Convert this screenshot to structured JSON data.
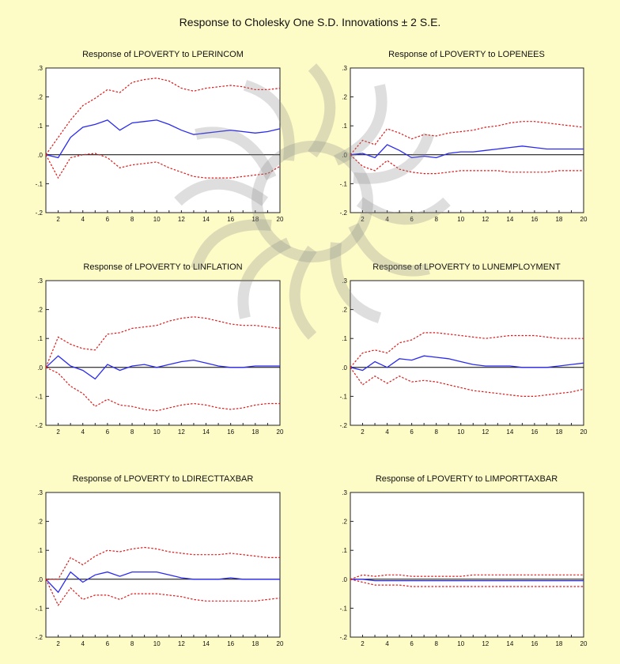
{
  "figure": {
    "title": "Response to Cholesky One S.D. Innovations ± 2 S.E.",
    "colors": {
      "background": "#fdfbc6",
      "response_line": "#2a2af0",
      "band_line": "#e01818",
      "zero_line": "#000000",
      "watermark": "#8a8a8a"
    }
  },
  "chart_data": [
    {
      "type": "line",
      "title": "Response of LPOVERTY to LPERINCOM",
      "x": [
        1,
        2,
        3,
        4,
        5,
        6,
        7,
        8,
        9,
        10,
        11,
        12,
        13,
        14,
        15,
        16,
        17,
        18,
        19,
        20
      ],
      "xticks": [
        2,
        4,
        6,
        8,
        10,
        12,
        14,
        16,
        18,
        20
      ],
      "ylim": [
        -0.2,
        0.3
      ],
      "yticks": [
        -0.2,
        -0.1,
        0.0,
        0.1,
        0.2,
        0.3
      ],
      "ytick_labels": [
        "-.2",
        "-.1",
        ".0",
        ".1",
        ".2",
        ".3"
      ],
      "series": [
        {
          "role": "response",
          "values": [
            0.0,
            -0.01,
            0.06,
            0.095,
            0.105,
            0.12,
            0.085,
            0.11,
            0.115,
            0.12,
            0.105,
            0.085,
            0.07,
            0.075,
            0.08,
            0.085,
            0.08,
            0.075,
            0.08,
            0.09
          ]
        },
        {
          "role": "upper",
          "values": [
            0.0,
            0.06,
            0.12,
            0.17,
            0.195,
            0.225,
            0.215,
            0.25,
            0.26,
            0.265,
            0.255,
            0.23,
            0.22,
            0.23,
            0.235,
            0.24,
            0.235,
            0.225,
            0.225,
            0.23
          ]
        },
        {
          "role": "lower",
          "values": [
            0.0,
            -0.08,
            -0.01,
            0.0,
            0.005,
            -0.01,
            -0.045,
            -0.035,
            -0.03,
            -0.025,
            -0.045,
            -0.06,
            -0.075,
            -0.08,
            -0.08,
            -0.08,
            -0.075,
            -0.07,
            -0.065,
            -0.04
          ]
        }
      ]
    },
    {
      "type": "line",
      "title": "Response of LPOVERTY to LOPENEES",
      "x": [
        1,
        2,
        3,
        4,
        5,
        6,
        7,
        8,
        9,
        10,
        11,
        12,
        13,
        14,
        15,
        16,
        17,
        18,
        19,
        20
      ],
      "xticks": [
        2,
        4,
        6,
        8,
        10,
        12,
        14,
        16,
        18,
        20
      ],
      "ylim": [
        -0.2,
        0.3
      ],
      "yticks": [
        -0.2,
        -0.1,
        0.0,
        0.1,
        0.2,
        0.3
      ],
      "ytick_labels": [
        "-.2",
        "-.1",
        ".0",
        ".1",
        ".2",
        ".3"
      ],
      "series": [
        {
          "role": "response",
          "values": [
            0.0,
            0.005,
            -0.01,
            0.035,
            0.015,
            -0.01,
            -0.005,
            -0.01,
            0.005,
            0.01,
            0.01,
            0.015,
            0.02,
            0.025,
            0.03,
            0.025,
            0.02,
            0.02,
            0.02,
            0.02
          ]
        },
        {
          "role": "upper",
          "values": [
            0.0,
            0.05,
            0.035,
            0.09,
            0.075,
            0.055,
            0.07,
            0.065,
            0.075,
            0.08,
            0.085,
            0.095,
            0.1,
            0.11,
            0.115,
            0.115,
            0.11,
            0.105,
            0.1,
            0.095
          ]
        },
        {
          "role": "lower",
          "values": [
            0.0,
            -0.04,
            -0.055,
            -0.02,
            -0.05,
            -0.06,
            -0.065,
            -0.065,
            -0.06,
            -0.055,
            -0.055,
            -0.055,
            -0.055,
            -0.06,
            -0.06,
            -0.06,
            -0.06,
            -0.055,
            -0.055,
            -0.055
          ]
        }
      ]
    },
    {
      "type": "line",
      "title": "Response of LPOVERTY to LINFLATION",
      "x": [
        1,
        2,
        3,
        4,
        5,
        6,
        7,
        8,
        9,
        10,
        11,
        12,
        13,
        14,
        15,
        16,
        17,
        18,
        19,
        20
      ],
      "xticks": [
        2,
        4,
        6,
        8,
        10,
        12,
        14,
        16,
        18,
        20
      ],
      "ylim": [
        -0.2,
        0.3
      ],
      "yticks": [
        -0.2,
        -0.1,
        0.0,
        0.1,
        0.2,
        0.3
      ],
      "ytick_labels": [
        "-.2",
        "-.1",
        ".0",
        ".1",
        ".2",
        ".3"
      ],
      "series": [
        {
          "role": "response",
          "values": [
            0.0,
            0.04,
            0.005,
            -0.01,
            -0.04,
            0.01,
            -0.01,
            0.005,
            0.01,
            0.0,
            0.01,
            0.02,
            0.025,
            0.015,
            0.005,
            0.0,
            0.0,
            0.005,
            0.005,
            0.005
          ]
        },
        {
          "role": "upper",
          "values": [
            0.0,
            0.105,
            0.08,
            0.065,
            0.06,
            0.115,
            0.12,
            0.135,
            0.14,
            0.145,
            0.16,
            0.17,
            0.175,
            0.17,
            0.16,
            0.15,
            0.145,
            0.145,
            0.14,
            0.135
          ]
        },
        {
          "role": "lower",
          "values": [
            0.0,
            -0.02,
            -0.065,
            -0.09,
            -0.135,
            -0.11,
            -0.13,
            -0.135,
            -0.145,
            -0.15,
            -0.14,
            -0.13,
            -0.125,
            -0.13,
            -0.14,
            -0.145,
            -0.14,
            -0.13,
            -0.125,
            -0.125
          ]
        }
      ]
    },
    {
      "type": "line",
      "title": "Response of LPOVERTY to LUNEMPLOYMENT",
      "x": [
        1,
        2,
        3,
        4,
        5,
        6,
        7,
        8,
        9,
        10,
        11,
        12,
        13,
        14,
        15,
        16,
        17,
        18,
        19,
        20
      ],
      "xticks": [
        2,
        4,
        6,
        8,
        10,
        12,
        14,
        16,
        18,
        20
      ],
      "ylim": [
        -0.2,
        0.3
      ],
      "yticks": [
        -0.2,
        -0.1,
        0.0,
        0.1,
        0.2,
        0.3
      ],
      "ytick_labels": [
        "-.2",
        "-.1",
        ".0",
        ".1",
        ".2",
        ".3"
      ],
      "series": [
        {
          "role": "response",
          "values": [
            0.0,
            -0.01,
            0.02,
            0.0,
            0.03,
            0.025,
            0.04,
            0.035,
            0.03,
            0.02,
            0.01,
            0.005,
            0.005,
            0.005,
            0.0,
            0.0,
            0.0,
            0.005,
            0.01,
            0.015
          ]
        },
        {
          "role": "upper",
          "values": [
            0.0,
            0.05,
            0.06,
            0.05,
            0.085,
            0.095,
            0.12,
            0.12,
            0.115,
            0.11,
            0.105,
            0.1,
            0.105,
            0.11,
            0.11,
            0.11,
            0.105,
            0.1,
            0.1,
            0.1
          ]
        },
        {
          "role": "lower",
          "values": [
            0.0,
            -0.06,
            -0.03,
            -0.055,
            -0.03,
            -0.05,
            -0.045,
            -0.05,
            -0.06,
            -0.07,
            -0.08,
            -0.085,
            -0.09,
            -0.095,
            -0.1,
            -0.1,
            -0.095,
            -0.09,
            -0.085,
            -0.075
          ]
        }
      ]
    },
    {
      "type": "line",
      "title": "Response of LPOVERTY to LDIRECTTAXBAR",
      "x": [
        1,
        2,
        3,
        4,
        5,
        6,
        7,
        8,
        9,
        10,
        11,
        12,
        13,
        14,
        15,
        16,
        17,
        18,
        19,
        20
      ],
      "xticks": [
        2,
        4,
        6,
        8,
        10,
        12,
        14,
        16,
        18,
        20
      ],
      "ylim": [
        -0.2,
        0.3
      ],
      "yticks": [
        -0.2,
        -0.1,
        0.0,
        0.1,
        0.2,
        0.3
      ],
      "ytick_labels": [
        "-.2",
        "-.1",
        ".0",
        ".1",
        ".2",
        ".3"
      ],
      "series": [
        {
          "role": "response",
          "values": [
            0.0,
            -0.045,
            0.025,
            -0.01,
            0.015,
            0.025,
            0.01,
            0.025,
            0.025,
            0.025,
            0.015,
            0.005,
            0.0,
            0.0,
            0.0,
            0.005,
            0.0,
            0.0,
            0.0,
            0.0
          ]
        },
        {
          "role": "upper",
          "values": [
            0.0,
            0.0,
            0.075,
            0.05,
            0.08,
            0.1,
            0.095,
            0.105,
            0.11,
            0.105,
            0.095,
            0.09,
            0.085,
            0.085,
            0.085,
            0.09,
            0.085,
            0.08,
            0.075,
            0.075
          ]
        },
        {
          "role": "lower",
          "values": [
            0.0,
            -0.09,
            -0.03,
            -0.07,
            -0.055,
            -0.055,
            -0.07,
            -0.05,
            -0.05,
            -0.05,
            -0.055,
            -0.06,
            -0.07,
            -0.075,
            -0.075,
            -0.075,
            -0.075,
            -0.075,
            -0.07,
            -0.065
          ]
        }
      ]
    },
    {
      "type": "line",
      "title": "Response of LPOVERTY to LIMPORTTAXBAR",
      "x": [
        1,
        2,
        3,
        4,
        5,
        6,
        7,
        8,
        9,
        10,
        11,
        12,
        13,
        14,
        15,
        16,
        17,
        18,
        19,
        20
      ],
      "xticks": [
        2,
        4,
        6,
        8,
        10,
        12,
        14,
        16,
        18,
        20
      ],
      "ylim": [
        -0.2,
        0.3
      ],
      "yticks": [
        -0.2,
        -0.1,
        0.0,
        0.1,
        0.2,
        0.3
      ],
      "ytick_labels": [
        "-.2",
        "-.1",
        ".0",
        ".1",
        ".2",
        ".3"
      ],
      "series": [
        {
          "role": "response",
          "values": [
            0.0,
            0.0,
            -0.005,
            -0.005,
            -0.005,
            -0.005,
            -0.005,
            -0.005,
            -0.005,
            -0.005,
            -0.005,
            -0.005,
            -0.005,
            -0.005,
            -0.005,
            -0.005,
            -0.005,
            -0.005,
            -0.005,
            -0.005
          ]
        },
        {
          "role": "upper",
          "values": [
            0.0,
            0.015,
            0.01,
            0.015,
            0.015,
            0.01,
            0.01,
            0.01,
            0.01,
            0.01,
            0.015,
            0.015,
            0.015,
            0.015,
            0.015,
            0.015,
            0.015,
            0.015,
            0.015,
            0.015
          ]
        },
        {
          "role": "lower",
          "values": [
            0.0,
            -0.01,
            -0.02,
            -0.02,
            -0.02,
            -0.025,
            -0.025,
            -0.025,
            -0.025,
            -0.025,
            -0.025,
            -0.025,
            -0.025,
            -0.025,
            -0.025,
            -0.025,
            -0.025,
            -0.025,
            -0.025,
            -0.025
          ]
        }
      ]
    }
  ]
}
